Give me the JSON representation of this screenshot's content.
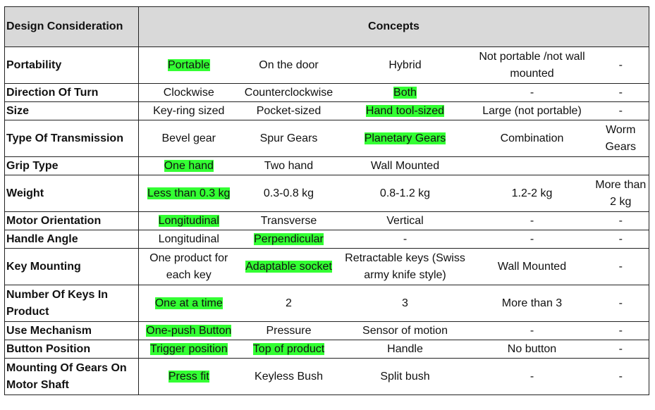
{
  "header": {
    "col1": "Design Consideration",
    "col2": "Concepts"
  },
  "colors": {
    "header_bg": "#d9d9d9",
    "selected_highlight": "#33ff33"
  },
  "rows": [
    {
      "label": "Portability",
      "cells": [
        {
          "text": "Portable",
          "selected": true
        },
        {
          "text": "On the door",
          "selected": false
        },
        {
          "text": "Hybrid",
          "selected": false
        },
        {
          "text": "Not portable /not wall mounted",
          "selected": false
        },
        {
          "text": "-",
          "selected": false
        }
      ]
    },
    {
      "label": "Direction Of Turn",
      "cells": [
        {
          "text": "Clockwise",
          "selected": false
        },
        {
          "text": "Counterclockwise",
          "selected": false
        },
        {
          "text": "Both",
          "selected": true
        },
        {
          "text": "-",
          "selected": false
        },
        {
          "text": "-",
          "selected": false
        }
      ]
    },
    {
      "label": "Size",
      "cells": [
        {
          "text": "Key-ring sized",
          "selected": false
        },
        {
          "text": "Pocket-sized",
          "selected": false
        },
        {
          "text": "Hand tool-sized",
          "selected": true
        },
        {
          "text": "Large (not portable)",
          "selected": false
        },
        {
          "text": "-",
          "selected": false
        }
      ]
    },
    {
      "label": "Type Of Transmission",
      "cells": [
        {
          "text": "Bevel gear",
          "selected": false
        },
        {
          "text": "Spur Gears",
          "selected": false
        },
        {
          "text": "Planetary Gears",
          "selected": true
        },
        {
          "text": "Combination",
          "selected": false
        },
        {
          "text": "Worm Gears",
          "selected": false
        }
      ]
    },
    {
      "label": "Grip Type",
      "cells": [
        {
          "text": "One hand",
          "selected": true
        },
        {
          "text": "Two hand",
          "selected": false
        },
        {
          "text": "Wall Mounted",
          "selected": false
        },
        {
          "text": "",
          "selected": false
        },
        {
          "text": "",
          "selected": false
        }
      ]
    },
    {
      "label": "Weight",
      "cells": [
        {
          "text": "Less than 0.3 kg",
          "selected": true
        },
        {
          "text": "0.3-0.8 kg",
          "selected": false
        },
        {
          "text": "0.8-1.2 kg",
          "selected": false
        },
        {
          "text": "1.2-2 kg",
          "selected": false
        },
        {
          "text": "More than 2 kg",
          "selected": false
        }
      ]
    },
    {
      "label": "Motor Orientation",
      "cells": [
        {
          "text": "Longitudinal",
          "selected": true
        },
        {
          "text": "Transverse",
          "selected": false
        },
        {
          "text": "Vertical",
          "selected": false
        },
        {
          "text": "-",
          "selected": false
        },
        {
          "text": "-",
          "selected": false
        }
      ]
    },
    {
      "label": "Handle Angle",
      "cells": [
        {
          "text": "Longitudinal",
          "selected": false
        },
        {
          "text": "Perpendicular",
          "selected": true
        },
        {
          "text": "-",
          "selected": false
        },
        {
          "text": "-",
          "selected": false
        },
        {
          "text": "-",
          "selected": false
        }
      ]
    },
    {
      "label": "Key Mounting",
      "cells": [
        {
          "text": "One product for each key",
          "selected": false
        },
        {
          "text": "Adaptable socket",
          "selected": true
        },
        {
          "text": "Retractable keys (Swiss army knife style)",
          "selected": false
        },
        {
          "text": "Wall Mounted",
          "selected": false
        },
        {
          "text": "-",
          "selected": false
        }
      ]
    },
    {
      "label": "Number Of Keys In Product",
      "cells": [
        {
          "text": "One at a time",
          "selected": true
        },
        {
          "text": "2",
          "selected": false
        },
        {
          "text": "3",
          "selected": false
        },
        {
          "text": "More than 3",
          "selected": false
        },
        {
          "text": "-",
          "selected": false
        }
      ]
    },
    {
      "label": "Use Mechanism",
      "cells": [
        {
          "text": "One-push Button",
          "selected": true
        },
        {
          "text": "Pressure",
          "selected": false
        },
        {
          "text": "Sensor of motion",
          "selected": false
        },
        {
          "text": "-",
          "selected": false
        },
        {
          "text": "-",
          "selected": false
        }
      ]
    },
    {
      "label": "Button Position",
      "cells": [
        {
          "text": "Trigger position",
          "selected": true
        },
        {
          "text": "Top of product",
          "selected": true
        },
        {
          "text": "Handle",
          "selected": false
        },
        {
          "text": "No button",
          "selected": false
        },
        {
          "text": "-",
          "selected": false
        }
      ]
    },
    {
      "label": "Mounting Of Gears On Motor Shaft",
      "cells": [
        {
          "text": "Press fit",
          "selected": true
        },
        {
          "text": "Keyless Bush",
          "selected": false
        },
        {
          "text": "Split bush",
          "selected": false
        },
        {
          "text": "-",
          "selected": false
        },
        {
          "text": "-",
          "selected": false
        }
      ]
    }
  ]
}
